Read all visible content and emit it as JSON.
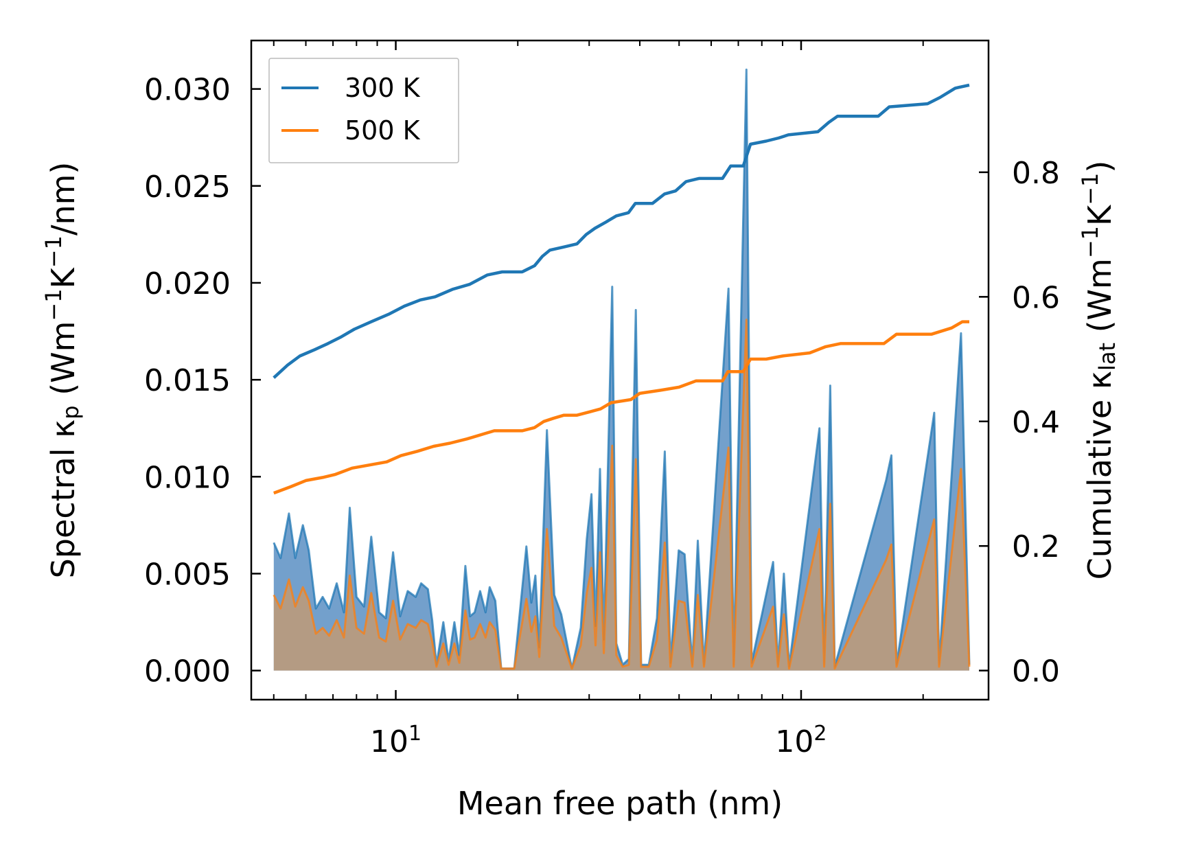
{
  "chart_data": {
    "type": "line",
    "xscale": "log",
    "xlim": [
      4.4,
      290
    ],
    "ylim_left": [
      -0.0015,
      0.0325
    ],
    "ylim_right": [
      -0.0467,
      1.0115
    ],
    "xlabel": "Mean free path (nm)",
    "ylabel_left": {
      "main": "Spectral κ",
      "sub": "p",
      "unit_open": " (Wm",
      "exp1": "−1",
      "mid": "K",
      "exp2": "−1",
      "unit_close": "/nm)"
    },
    "ylabel_right": {
      "main": "Cumulative κ",
      "sub": "lat",
      "unit_open": " (Wm",
      "exp1": "−1",
      "mid": "K",
      "exp2": "−1",
      "unit_close": ")"
    },
    "x_ticks": [
      {
        "value": 10,
        "base": "10",
        "exp": "1"
      },
      {
        "value": 100,
        "base": "10",
        "exp": "2"
      }
    ],
    "y_left_ticks": [
      {
        "value": 0.0,
        "label": "0.000"
      },
      {
        "value": 0.005,
        "label": "0.005"
      },
      {
        "value": 0.01,
        "label": "0.010"
      },
      {
        "value": 0.015,
        "label": "0.015"
      },
      {
        "value": 0.02,
        "label": "0.020"
      },
      {
        "value": 0.025,
        "label": "0.025"
      },
      {
        "value": 0.03,
        "label": "0.030"
      }
    ],
    "y_right_ticks": [
      {
        "value": 0.0,
        "label": "0.0"
      },
      {
        "value": 0.2,
        "label": "0.2"
      },
      {
        "value": 0.4,
        "label": "0.4"
      },
      {
        "value": 0.6,
        "label": "0.6"
      },
      {
        "value": 0.8,
        "label": "0.8"
      }
    ],
    "legend": {
      "placement": "top-left",
      "entries": [
        {
          "name": "300 K",
          "color": "#1f77b4"
        },
        {
          "name": "500 K",
          "color": "#ff7f0e"
        }
      ]
    },
    "series": [
      {
        "name": "300 K",
        "color": "#1f77b4",
        "fill": "#5a8fc3",
        "spectral": [
          [
            5.0,
            0.0066
          ],
          [
            5.2,
            0.0058
          ],
          [
            5.45,
            0.0081
          ],
          [
            5.65,
            0.0058
          ],
          [
            5.9,
            0.0075
          ],
          [
            6.1,
            0.0062
          ],
          [
            6.35,
            0.0032
          ],
          [
            6.6,
            0.0038
          ],
          [
            6.85,
            0.0032
          ],
          [
            7.15,
            0.0045
          ],
          [
            7.45,
            0.003
          ],
          [
            7.7,
            0.0084
          ],
          [
            8.0,
            0.0038
          ],
          [
            8.35,
            0.0033
          ],
          [
            8.7,
            0.0069
          ],
          [
            9.1,
            0.003
          ],
          [
            9.45,
            0.0027
          ],
          [
            9.85,
            0.0061
          ],
          [
            10.25,
            0.0028
          ],
          [
            10.7,
            0.0041
          ],
          [
            11.2,
            0.0038
          ],
          [
            11.55,
            0.0045
          ],
          [
            12.0,
            0.0042
          ],
          [
            12.3,
            0.0026
          ],
          [
            12.6,
            0.0003
          ],
          [
            13.1,
            0.0025
          ],
          [
            13.5,
            0.0005
          ],
          [
            13.95,
            0.0025
          ],
          [
            14.35,
            0.0008
          ],
          [
            14.85,
            0.0054
          ],
          [
            15.25,
            0.0028
          ],
          [
            15.65,
            0.003
          ],
          [
            16.15,
            0.0041
          ],
          [
            16.65,
            0.003
          ],
          [
            17.05,
            0.0043
          ],
          [
            17.6,
            0.0036
          ],
          [
            18.2,
            0.0001
          ],
          [
            19.6,
            0.0001
          ],
          [
            21.0,
            0.0064
          ],
          [
            21.6,
            0.0035
          ],
          [
            22.1,
            0.0049
          ],
          [
            22.6,
            0.0012
          ],
          [
            23.6,
            0.0124
          ],
          [
            24.6,
            0.0039
          ],
          [
            25.6,
            0.0029
          ],
          [
            27.2,
            0.0001
          ],
          [
            28.6,
            0.0022
          ],
          [
            29.6,
            0.0068
          ],
          [
            30.4,
            0.0091
          ],
          [
            31.1,
            0.0023
          ],
          [
            31.9,
            0.0104
          ],
          [
            32.6,
            0.0016
          ],
          [
            34.2,
            0.0198
          ],
          [
            35.0,
            0.0014
          ],
          [
            36.3,
            0.0003
          ],
          [
            37.6,
            0.0006
          ],
          [
            39.1,
            0.0186
          ],
          [
            40.3,
            0.0003
          ],
          [
            42.1,
            0.0003
          ],
          [
            44.1,
            0.0027
          ],
          [
            46.1,
            0.0113
          ],
          [
            47.6,
            0.0004
          ],
          [
            49.9,
            0.0062
          ],
          [
            51.6,
            0.006
          ],
          [
            53.9,
            0.0003
          ],
          [
            55.6,
            0.0067
          ],
          [
            57.6,
            0.0003
          ],
          [
            66.2,
            0.0197
          ],
          [
            68.2,
            0.0003
          ],
          [
            73.3,
            0.031
          ],
          [
            75.5,
            0.0004
          ],
          [
            85.3,
            0.0056
          ],
          [
            87.7,
            0.0003
          ],
          [
            90.7,
            0.005
          ],
          [
            93.4,
            0.0002
          ],
          [
            111.0,
            0.0125
          ],
          [
            114.0,
            0.0003
          ],
          [
            118.0,
            0.0147
          ],
          [
            121.0,
            0.0002
          ],
          [
            162.0,
            0.0098
          ],
          [
            167.0,
            0.0111
          ],
          [
            172.0,
            0.0003
          ],
          [
            213.0,
            0.0133
          ],
          [
            219.0,
            0.0003
          ],
          [
            248.0,
            0.0174
          ],
          [
            260.0,
            0.0003
          ]
        ],
        "cumulative": [
          [
            5.0,
            0.47
          ],
          [
            5.4,
            0.49
          ],
          [
            5.8,
            0.505
          ],
          [
            6.3,
            0.515
          ],
          [
            6.8,
            0.525
          ],
          [
            7.3,
            0.535
          ],
          [
            7.9,
            0.548
          ],
          [
            8.7,
            0.56
          ],
          [
            9.6,
            0.572
          ],
          [
            10.5,
            0.585
          ],
          [
            11.5,
            0.595
          ],
          [
            12.5,
            0.6
          ],
          [
            13.8,
            0.612
          ],
          [
            15.2,
            0.62
          ],
          [
            16.8,
            0.635
          ],
          [
            18.3,
            0.64
          ],
          [
            20.5,
            0.64
          ],
          [
            22.0,
            0.65
          ],
          [
            23.0,
            0.665
          ],
          [
            24.0,
            0.675
          ],
          [
            26.0,
            0.68
          ],
          [
            28.0,
            0.685
          ],
          [
            29.5,
            0.7
          ],
          [
            31.0,
            0.71
          ],
          [
            33.0,
            0.72
          ],
          [
            35.0,
            0.73
          ],
          [
            37.5,
            0.735
          ],
          [
            39.0,
            0.75
          ],
          [
            43.0,
            0.75
          ],
          [
            46.0,
            0.765
          ],
          [
            49.0,
            0.77
          ],
          [
            52.0,
            0.785
          ],
          [
            56.0,
            0.79
          ],
          [
            64.0,
            0.79
          ],
          [
            67.0,
            0.81
          ],
          [
            72.0,
            0.81
          ],
          [
            75.0,
            0.845
          ],
          [
            82.0,
            0.85
          ],
          [
            88.0,
            0.855
          ],
          [
            93.0,
            0.86
          ],
          [
            110.0,
            0.865
          ],
          [
            117.0,
            0.88
          ],
          [
            123.0,
            0.89
          ],
          [
            155.0,
            0.89
          ],
          [
            165.0,
            0.905
          ],
          [
            205.0,
            0.91
          ],
          [
            220.0,
            0.92
          ],
          [
            240.0,
            0.935
          ],
          [
            260.0,
            0.94
          ]
        ]
      },
      {
        "name": "500 K",
        "color": "#ff7f0e",
        "fill": "#c49a70",
        "spectral": [
          [
            5.0,
            0.0039
          ],
          [
            5.2,
            0.0032
          ],
          [
            5.45,
            0.0047
          ],
          [
            5.65,
            0.0033
          ],
          [
            5.9,
            0.0043
          ],
          [
            6.1,
            0.0036
          ],
          [
            6.35,
            0.0019
          ],
          [
            6.6,
            0.0022
          ],
          [
            6.85,
            0.0018
          ],
          [
            7.15,
            0.0026
          ],
          [
            7.45,
            0.0017
          ],
          [
            7.7,
            0.0049
          ],
          [
            8.0,
            0.0022
          ],
          [
            8.35,
            0.0019
          ],
          [
            8.7,
            0.004
          ],
          [
            9.1,
            0.0017
          ],
          [
            9.45,
            0.0015
          ],
          [
            9.85,
            0.0036
          ],
          [
            10.25,
            0.0016
          ],
          [
            10.7,
            0.0024
          ],
          [
            11.2,
            0.0022
          ],
          [
            11.55,
            0.0026
          ],
          [
            12.0,
            0.0024
          ],
          [
            12.3,
            0.0015
          ],
          [
            12.6,
            0.0002
          ],
          [
            13.1,
            0.0014
          ],
          [
            13.5,
            0.0003
          ],
          [
            13.95,
            0.0014
          ],
          [
            14.35,
            0.0004
          ],
          [
            14.85,
            0.0031
          ],
          [
            15.25,
            0.0016
          ],
          [
            15.65,
            0.0017
          ],
          [
            16.15,
            0.0024
          ],
          [
            16.65,
            0.0017
          ],
          [
            17.05,
            0.0025
          ],
          [
            17.6,
            0.0021
          ],
          [
            18.2,
            0.0001
          ],
          [
            19.6,
            0.0001
          ],
          [
            21.0,
            0.0037
          ],
          [
            21.6,
            0.002
          ],
          [
            22.1,
            0.0028
          ],
          [
            22.6,
            0.0007
          ],
          [
            23.6,
            0.0073
          ],
          [
            24.6,
            0.0023
          ],
          [
            25.6,
            0.0017
          ],
          [
            27.2,
            0.0001
          ],
          [
            28.6,
            0.0013
          ],
          [
            29.6,
            0.004
          ],
          [
            30.4,
            0.0053
          ],
          [
            31.1,
            0.0013
          ],
          [
            31.9,
            0.0061
          ],
          [
            32.6,
            0.0009
          ],
          [
            34.2,
            0.0116
          ],
          [
            35.0,
            0.0008
          ],
          [
            36.3,
            0.0002
          ],
          [
            37.6,
            0.0003
          ],
          [
            39.1,
            0.0109
          ],
          [
            40.3,
            0.0002
          ],
          [
            42.1,
            0.0002
          ],
          [
            44.1,
            0.0016
          ],
          [
            46.1,
            0.0066
          ],
          [
            47.6,
            0.0002
          ],
          [
            49.9,
            0.0036
          ],
          [
            51.6,
            0.0035
          ],
          [
            53.9,
            0.0002
          ],
          [
            55.6,
            0.0039
          ],
          [
            57.6,
            0.0002
          ],
          [
            66.2,
            0.0115
          ],
          [
            68.2,
            0.0002
          ],
          [
            73.3,
            0.0181
          ],
          [
            75.5,
            0.0002
          ],
          [
            85.3,
            0.0033
          ],
          [
            87.7,
            0.0002
          ],
          [
            90.7,
            0.0029
          ],
          [
            93.4,
            0.0001
          ],
          [
            111.0,
            0.0073
          ],
          [
            114.0,
            0.0002
          ],
          [
            118.0,
            0.0086
          ],
          [
            121.0,
            0.0001
          ],
          [
            162.0,
            0.0057
          ],
          [
            167.0,
            0.0065
          ],
          [
            172.0,
            0.0002
          ],
          [
            213.0,
            0.0078
          ],
          [
            219.0,
            0.0002
          ],
          [
            248.0,
            0.0104
          ],
          [
            260.0,
            0.0002
          ]
        ],
        "cumulative": [
          [
            5.0,
            0.285
          ],
          [
            5.5,
            0.295
          ],
          [
            6.0,
            0.305
          ],
          [
            6.6,
            0.31
          ],
          [
            7.1,
            0.315
          ],
          [
            7.8,
            0.325
          ],
          [
            8.6,
            0.33
          ],
          [
            9.5,
            0.335
          ],
          [
            10.3,
            0.345
          ],
          [
            11.3,
            0.352
          ],
          [
            12.4,
            0.36
          ],
          [
            13.6,
            0.365
          ],
          [
            15.0,
            0.372
          ],
          [
            16.5,
            0.38
          ],
          [
            17.5,
            0.385
          ],
          [
            18.5,
            0.385
          ],
          [
            20.5,
            0.385
          ],
          [
            22.0,
            0.39
          ],
          [
            23.2,
            0.4
          ],
          [
            24.5,
            0.405
          ],
          [
            26.0,
            0.41
          ],
          [
            28.0,
            0.41
          ],
          [
            30.0,
            0.415
          ],
          [
            32.0,
            0.42
          ],
          [
            34.0,
            0.43
          ],
          [
            38.0,
            0.435
          ],
          [
            40.0,
            0.445
          ],
          [
            45.0,
            0.45
          ],
          [
            50.0,
            0.455
          ],
          [
            55.0,
            0.465
          ],
          [
            64.0,
            0.465
          ],
          [
            66.0,
            0.48
          ],
          [
            72.0,
            0.48
          ],
          [
            75.0,
            0.5
          ],
          [
            82.0,
            0.5
          ],
          [
            90.0,
            0.505
          ],
          [
            105.0,
            0.51
          ],
          [
            115.0,
            0.52
          ],
          [
            125.0,
            0.525
          ],
          [
            160.0,
            0.525
          ],
          [
            172.0,
            0.54
          ],
          [
            210.0,
            0.54
          ],
          [
            235.0,
            0.55
          ],
          [
            250.0,
            0.56
          ],
          [
            260.0,
            0.56
          ]
        ]
      }
    ]
  }
}
